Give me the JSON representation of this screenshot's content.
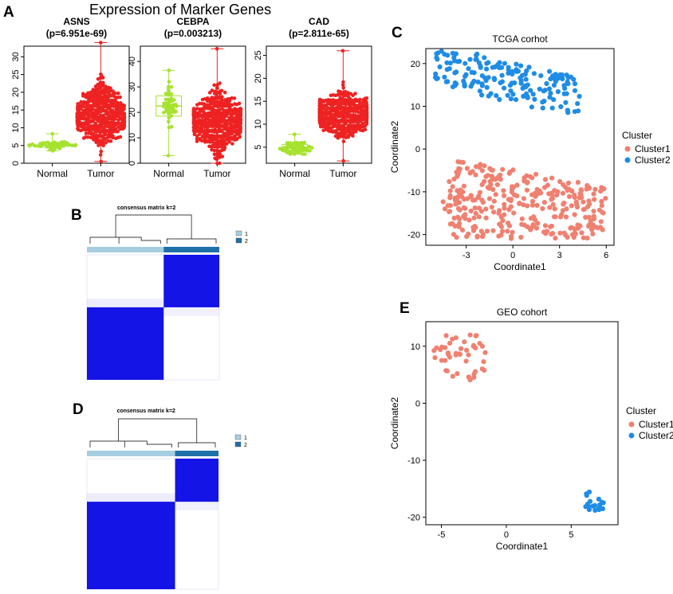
{
  "figure_title": "Expression of Marker Genes",
  "panel_labels": {
    "A": "A",
    "B": "B",
    "C": "C",
    "D": "D",
    "E": "E"
  },
  "colors": {
    "normal": "#a6e22e",
    "tumor": "#ee2222",
    "cluster1": "#f08070",
    "cluster2": "#1f8ce6",
    "heat_high": "#1414e6",
    "bar_light": "#a6cde0",
    "bar_dark": "#1f6fa8"
  },
  "chart_data": [
    {
      "type": "boxplot-swarm",
      "title": "ASNS",
      "subtitle": "(p=6.951e-69)",
      "categories": [
        "Normal",
        "Tumor"
      ],
      "yticks": [
        0,
        5,
        10,
        15,
        20,
        25,
        30
      ],
      "ylim": [
        0,
        33
      ],
      "groups": [
        {
          "name": "Normal",
          "n": 50,
          "min": 3.5,
          "q1": 4.5,
          "median": 5.1,
          "q3": 5.6,
          "max": 8.3
        },
        {
          "name": "Tumor",
          "n": 450,
          "min": 0.5,
          "q1": 9.5,
          "median": 13.0,
          "q3": 17.5,
          "max": 34
        }
      ]
    },
    {
      "type": "boxplot-swarm",
      "title": "CEBPA",
      "subtitle": "(p=0.003213)",
      "categories": [
        "Normal",
        "Tumor"
      ],
      "yticks": [
        0,
        10,
        20,
        30,
        40
      ],
      "ylim": [
        0,
        46
      ],
      "groups": [
        {
          "name": "Normal",
          "n": 45,
          "min": 3,
          "q1": 18.5,
          "median": 22.5,
          "q3": 26.5,
          "max": 36.5
        },
        {
          "name": "Tumor",
          "n": 450,
          "min": 0,
          "q1": 11,
          "median": 16.5,
          "q3": 22,
          "max": 45
        }
      ]
    },
    {
      "type": "boxplot-swarm",
      "title": "CAD",
      "subtitle": "(p=2.811e-65)",
      "categories": [
        "Normal",
        "Tumor"
      ],
      "yticks": [
        5,
        10,
        15,
        20,
        25
      ],
      "ylim": [
        1.5,
        27
      ],
      "groups": [
        {
          "name": "Normal",
          "n": 50,
          "min": 3.5,
          "q1": 4.2,
          "median": 4.8,
          "q3": 5.6,
          "max": 7.8
        },
        {
          "name": "Tumor",
          "n": 450,
          "min": 2,
          "q1": 10,
          "median": 12.2,
          "q3": 14.5,
          "max": 26
        }
      ]
    },
    {
      "type": "heatmap",
      "title": "consensus matrix k=2",
      "legend": [
        "1",
        "2"
      ],
      "cluster_fractions": [
        0.58,
        0.42
      ],
      "first_cluster_block": "bottom-left"
    },
    {
      "type": "scatter",
      "title": "TCGA corhot",
      "xlabel": "Coordinate1",
      "ylabel": "Coordinate2",
      "xticks": [
        -3,
        0,
        3,
        6
      ],
      "yticks": [
        -20,
        -10,
        0,
        10,
        20
      ],
      "xlim": [
        -5.6,
        6.5
      ],
      "ylim": [
        -22.5,
        23.5
      ],
      "legend_title": "Cluster",
      "legend": [
        "Cluster1",
        "Cluster2"
      ],
      "clusters": [
        {
          "name": "Cluster1",
          "n": 320,
          "x_range": [
            -4.5,
            6
          ],
          "y_range": [
            -21,
            -2
          ]
        },
        {
          "name": "Cluster2",
          "n": 170,
          "x_range": [
            -5,
            4.3
          ],
          "y_range": [
            8.5,
            23
          ]
        }
      ]
    },
    {
      "type": "heatmap",
      "title": "consensus matrix k=2",
      "legend": [
        "1",
        "2"
      ],
      "cluster_fractions": [
        0.67,
        0.33
      ],
      "first_cluster_block": "bottom-left"
    },
    {
      "type": "scatter",
      "title": "GEO cohort",
      "xlabel": "Coordinate1",
      "ylabel": "Coordinate2",
      "xticks": [
        -5,
        0,
        5
      ],
      "yticks": [
        -20,
        -10,
        0,
        10
      ],
      "xlim": [
        -6.2,
        8.6
      ],
      "ylim": [
        -21.3,
        14.3
      ],
      "legend_title": "Cluster",
      "legend": [
        "Cluster1",
        "Cluster2"
      ],
      "clusters": [
        {
          "name": "Cluster1",
          "n": 45,
          "x_range": [
            -5.8,
            -1.5
          ],
          "y_range": [
            4,
            12
          ]
        },
        {
          "name": "Cluster2",
          "n": 18,
          "x_range": [
            6.1,
            7.5
          ],
          "y_range": [
            -19,
            -15.5
          ]
        }
      ]
    }
  ]
}
